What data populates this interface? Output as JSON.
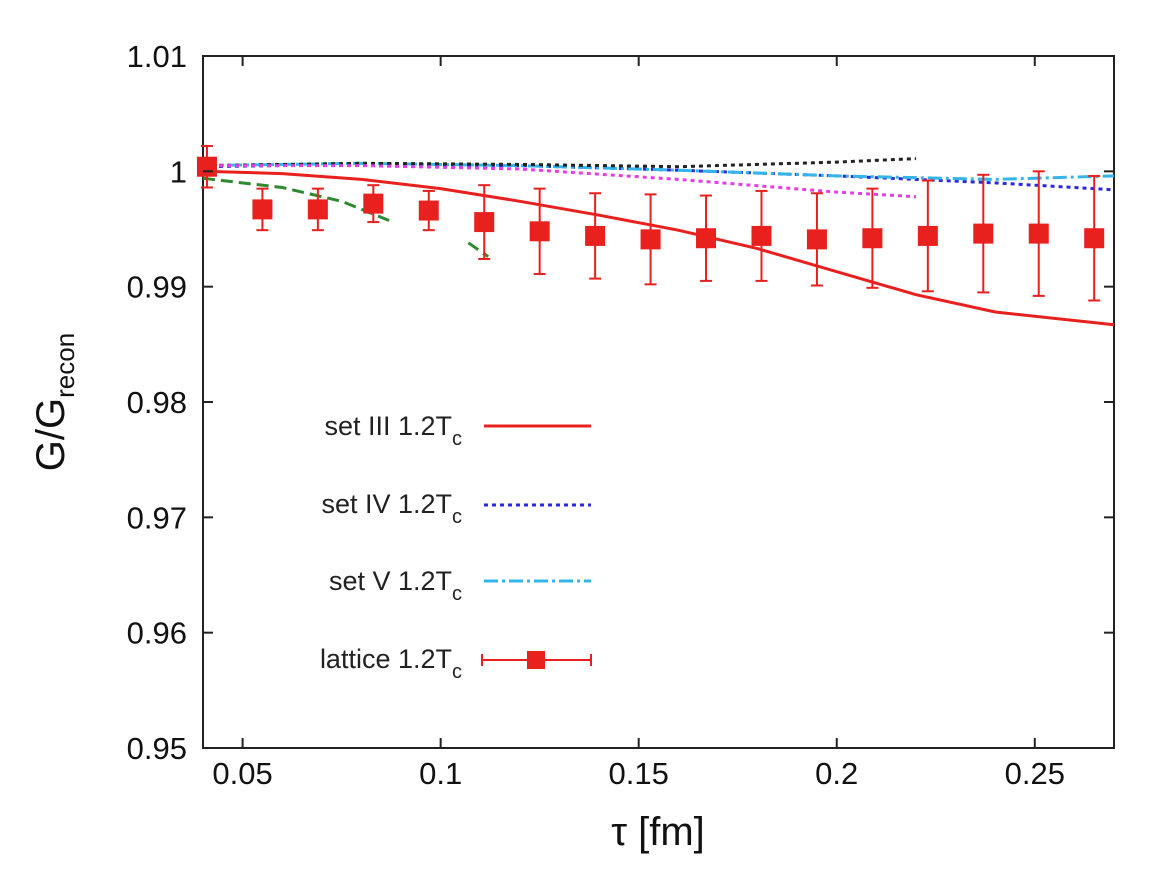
{
  "chart_data": {
    "type": "line",
    "xlabel": "τ [fm]",
    "ylabel": {
      "main": "G/G",
      "sub": "recon"
    },
    "xlim": [
      0.04,
      0.27
    ],
    "ylim": [
      0.95,
      1.01
    ],
    "xticks": [
      0.05,
      0.1,
      0.15,
      0.2,
      0.25
    ],
    "xtick_labels": [
      "0.05",
      "0.1",
      "0.15",
      "0.2",
      "0.25"
    ],
    "yticks": [
      0.95,
      0.96,
      0.97,
      0.98,
      0.99,
      1.0,
      1.01
    ],
    "ytick_labels": [
      "0.95",
      "0.96",
      "0.97",
      "0.98",
      "0.99",
      "1",
      "1.01"
    ],
    "grid": false,
    "legend_position": "bottom-left",
    "series": [
      {
        "name": "set III 1.2T",
        "name_sub": "c",
        "style": "solid",
        "color": "#e8201e",
        "x": [
          0.04,
          0.06,
          0.08,
          0.1,
          0.12,
          0.14,
          0.16,
          0.18,
          0.2,
          0.22,
          0.24,
          0.27
        ],
        "y": [
          1.0,
          0.9998,
          0.9993,
          0.9985,
          0.9974,
          0.9962,
          0.9949,
          0.9933,
          0.9913,
          0.9893,
          0.9878,
          0.9867
        ]
      },
      {
        "name": "set IV 1.2T",
        "name_sub": "c",
        "style": "dotted",
        "color": "#2a2ad8",
        "x": [
          0.04,
          0.08,
          0.12,
          0.16,
          0.2,
          0.24,
          0.27
        ],
        "y": [
          1.0004,
          1.0006,
          1.0005,
          1.0001,
          0.9996,
          0.999,
          0.9984
        ]
      },
      {
        "name": "set V 1.2T",
        "name_sub": "c",
        "style": "dashdot",
        "color": "#33b5ea",
        "x": [
          0.04,
          0.08,
          0.12,
          0.16,
          0.2,
          0.24,
          0.27
        ],
        "y": [
          1.0005,
          1.0007,
          1.0005,
          1.0001,
          0.9996,
          0.9993,
          0.9996
        ]
      },
      {
        "name": "",
        "style": "dotted",
        "color": "#222222",
        "x": [
          0.04,
          0.08,
          0.12,
          0.16,
          0.2,
          0.22
        ],
        "y": [
          1.0005,
          1.0007,
          1.0006,
          1.0004,
          1.0008,
          1.0011
        ]
      },
      {
        "name": "",
        "style": "dotted",
        "color": "#e040e0",
        "x": [
          0.04,
          0.08,
          0.12,
          0.16,
          0.2,
          0.22
        ],
        "y": [
          1.0005,
          1.0005,
          1.0002,
          0.9993,
          0.9982,
          0.9978
        ]
      },
      {
        "name": "",
        "style": "dashed",
        "color": "#2f8a2f",
        "segments": [
          {
            "x": [
              0.04,
              0.06,
              0.075,
              0.088
            ],
            "y": [
              0.9994,
              0.9986,
              0.9974,
              0.9956
            ]
          },
          {
            "x": [
              0.107,
              0.112
            ],
            "y": [
              0.9938,
              0.9926
            ]
          }
        ]
      },
      {
        "name": "lattice 1.2T",
        "name_sub": "c",
        "type": "errorbar",
        "marker": "square",
        "color": "#e8201e",
        "x": [
          0.041,
          0.055,
          0.069,
          0.083,
          0.097,
          0.111,
          0.125,
          0.139,
          0.153,
          0.167,
          0.181,
          0.195,
          0.209,
          0.223,
          0.237,
          0.251,
          0.265
        ],
        "y": [
          1.0004,
          0.9967,
          0.9967,
          0.9972,
          0.9966,
          0.9956,
          0.9948,
          0.9944,
          0.9941,
          0.9942,
          0.9944,
          0.9941,
          0.9942,
          0.9944,
          0.9946,
          0.9946,
          0.9942
        ],
        "err": [
          0.0018,
          0.0018,
          0.0018,
          0.0016,
          0.0017,
          0.0032,
          0.0037,
          0.0037,
          0.0039,
          0.0037,
          0.0039,
          0.004,
          0.0043,
          0.0048,
          0.0051,
          0.0054,
          0.0054
        ]
      }
    ]
  }
}
